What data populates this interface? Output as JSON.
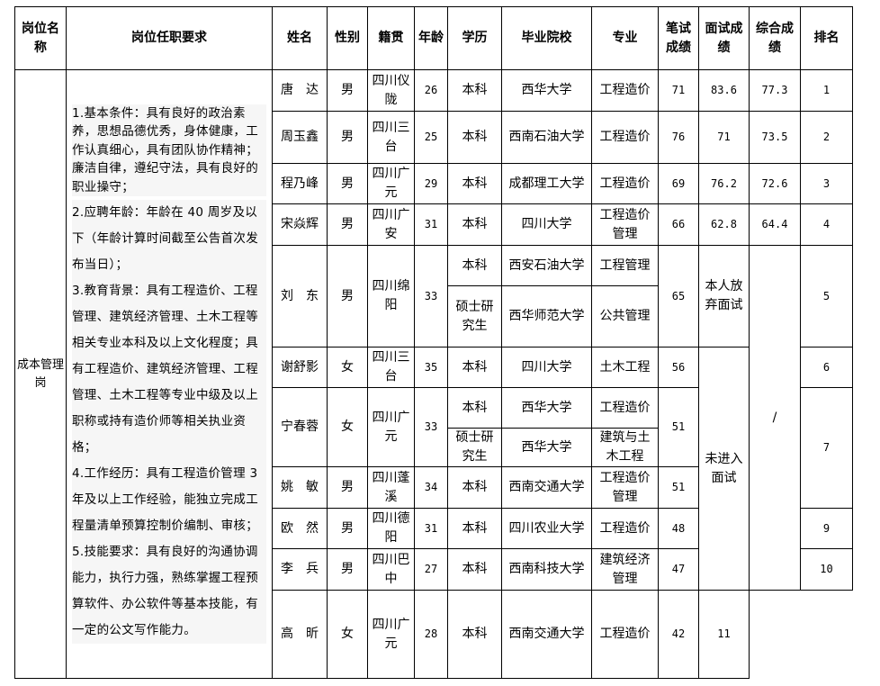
{
  "headers": {
    "position": "岗位名称",
    "requirements": "岗位任职要求",
    "name": "姓名",
    "gender": "性别",
    "origin": "籍贯",
    "age": "年龄",
    "education": "学历",
    "school": "毕业院校",
    "major": "专业",
    "written": "笔试成绩",
    "interview": "面试成绩",
    "composite": "综合成绩",
    "rank": "排名"
  },
  "position": "成本管理岗",
  "requirements": [
    "1.基本条件：具有良好的政治素养，思想品德优秀，身体健康，工作认真细心，具有团队协作精神；廉洁自律，遵纪守法，具有良好的职业操守；",
    "2.应聘年龄：年龄在 40 周岁及以下（年龄计算时间截至公告首次发布当日）；",
    "3.教育背景：具有工程造价、工程管理、建筑经济管理、土木工程等相关专业本科及以上文化程度；具有工程造价、建筑经济管理、工程管理、土木工程等专业中级及以上职称或持有造价师等相关执业资格；",
    "4.工作经历：具有工程造价管理 3 年及以上工作经验，能独立完成工程量清单预算控制价编制、审核；",
    "5.技能要求：具有良好的沟通协调能力，执行力强，熟练掌握工程预算软件、办公软件等基本技能，有一定的公文写作能力。"
  ],
  "candidates": [
    {
      "name": "唐　达",
      "gender": "男",
      "origin": "四川仪陇",
      "age": "26",
      "degrees": [
        {
          "edu": "本科",
          "school": "西华大学",
          "major": "工程造价"
        }
      ],
      "written": "71",
      "interview": "83.6",
      "composite": "77.3",
      "rank": "1"
    },
    {
      "name": "周玉鑫",
      "gender": "男",
      "origin": "四川三台",
      "age": "25",
      "degrees": [
        {
          "edu": "本科",
          "school": "西南石油大学",
          "major": "工程造价"
        }
      ],
      "written": "76",
      "interview": "71",
      "composite": "73.5",
      "rank": "2"
    },
    {
      "name": "程乃峰",
      "gender": "男",
      "origin": "四川广元",
      "age": "29",
      "degrees": [
        {
          "edu": "本科",
          "school": "成都理工大学",
          "major": "工程造价"
        }
      ],
      "written": "69",
      "interview": "76.2",
      "composite": "72.6",
      "rank": "3"
    },
    {
      "name": "宋焱辉",
      "gender": "男",
      "origin": "四川广安",
      "age": "31",
      "degrees": [
        {
          "edu": "本科",
          "school": "四川大学",
          "major": "工程造价管理"
        }
      ],
      "written": "66",
      "interview": "62.8",
      "composite": "64.4",
      "rank": "4"
    },
    {
      "name": "刘　东",
      "gender": "男",
      "origin": "四川绵阳",
      "age": "33",
      "degrees": [
        {
          "edu": "本科",
          "school": "西安石油大学",
          "major": "工程管理"
        },
        {
          "edu": "硕士研究生",
          "school": "西华师范大学",
          "major": "公共管理"
        }
      ],
      "written": "65",
      "interview": "本人放弃面试",
      "rank": "5"
    },
    {
      "name": "谢舒影",
      "gender": "女",
      "origin": "四川三台",
      "age": "35",
      "degrees": [
        {
          "edu": "本科",
          "school": "四川大学",
          "major": "土木工程"
        }
      ],
      "written": "56",
      "rank": "6"
    },
    {
      "name": "宁春蓉",
      "gender": "女",
      "origin": "四川广元",
      "age": "33",
      "degrees": [
        {
          "edu": "本科",
          "school": "西华大学",
          "major": "工程造价"
        },
        {
          "edu": "硕士研究生",
          "school": "西华大学",
          "major": "建筑与土木工程"
        }
      ],
      "written": "51",
      "rank": "7"
    },
    {
      "name": "姚　敏",
      "gender": "男",
      "origin": "四川蓬溪",
      "age": "34",
      "degrees": [
        {
          "edu": "本科",
          "school": "西南交通大学",
          "major": "工程造价管理"
        }
      ],
      "written": "51"
    },
    {
      "name": "欧　然",
      "gender": "男",
      "origin": "四川德阳",
      "age": "31",
      "degrees": [
        {
          "edu": "本科",
          "school": "四川农业大学",
          "major": "工程造价"
        }
      ],
      "written": "48",
      "rank": "9"
    },
    {
      "name": "李　兵",
      "gender": "男",
      "origin": "四川巴中",
      "age": "27",
      "degrees": [
        {
          "edu": "本科",
          "school": "西南科技大学",
          "major": "建筑经济管理"
        }
      ],
      "written": "47",
      "rank": "10"
    },
    {
      "name": "高　昕",
      "gender": "女",
      "origin": "四川广元",
      "age": "28",
      "degrees": [
        {
          "edu": "本科",
          "school": "西南交通大学",
          "major": "工程造价"
        }
      ],
      "written": "42",
      "rank": "11"
    }
  ],
  "not_interviewed": "未进入面试",
  "no_composite": "/"
}
